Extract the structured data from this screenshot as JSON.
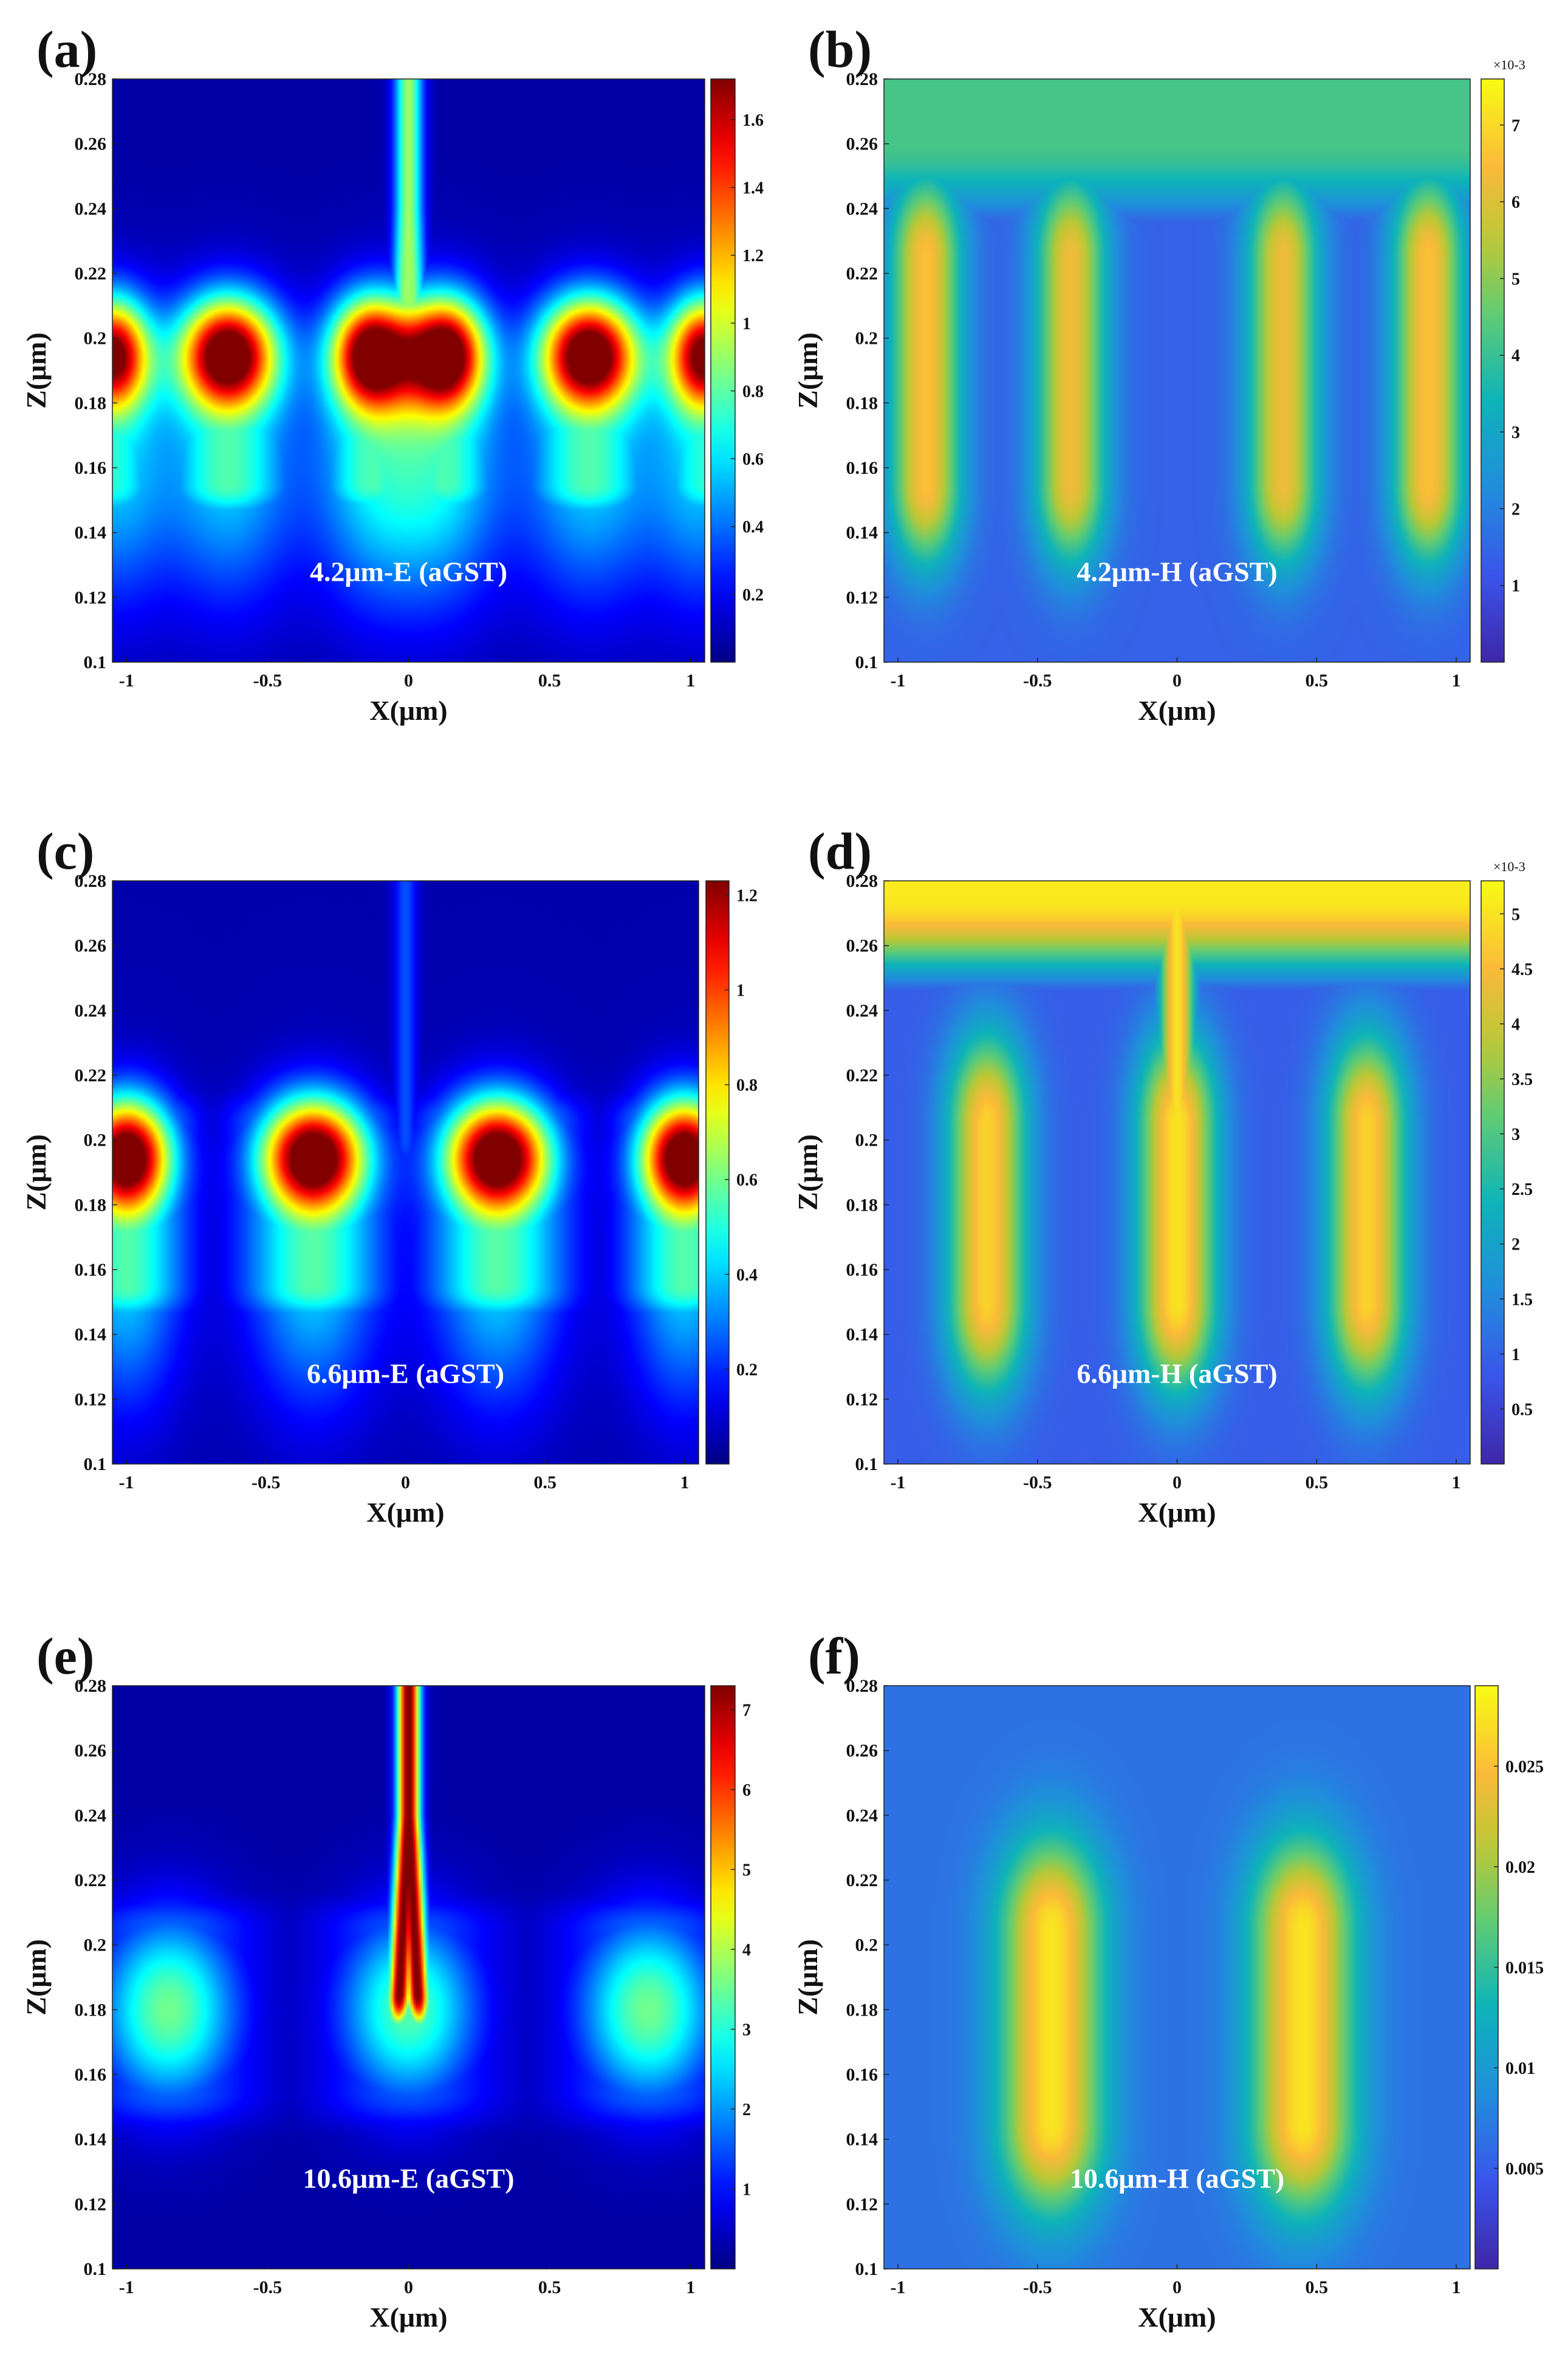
{
  "figure": {
    "description_free": true,
    "colormaps": {
      "jet_panels": [
        "a",
        "c",
        "e"
      ],
      "parula_panels": [
        "b",
        "d",
        "f"
      ]
    }
  },
  "chart_data": [
    {
      "id": "a",
      "panel_label": "(a)",
      "type": "heatmap",
      "colormap": "jet",
      "annotation": "4.2μm-E (aGST)",
      "xlabel": "X(μm)",
      "ylabel": "Z(μm)",
      "xlim": [
        -1.05,
        1.05
      ],
      "ylim": [
        0.1,
        0.28
      ],
      "x_ticks": [
        {
          "v": -1,
          "t": "-1"
        },
        {
          "v": -0.5,
          "t": "-0.5"
        },
        {
          "v": 0,
          "t": "0"
        },
        {
          "v": 0.5,
          "t": "0.5"
        },
        {
          "v": 1,
          "t": "1"
        }
      ],
      "y_ticks": [
        {
          "v": 0.1,
          "t": "0.1"
        },
        {
          "v": 0.12,
          "t": "0.12"
        },
        {
          "v": 0.14,
          "t": "0.14"
        },
        {
          "v": 0.16,
          "t": "0.16"
        },
        {
          "v": 0.18,
          "t": "0.18"
        },
        {
          "v": 0.2,
          "t": "0.2"
        },
        {
          "v": 0.22,
          "t": "0.22"
        },
        {
          "v": 0.24,
          "t": "0.24"
        },
        {
          "v": 0.26,
          "t": "0.26"
        },
        {
          "v": 0.28,
          "t": "0.28"
        }
      ],
      "colorbar": {
        "min": 0,
        "max": 1.72,
        "exponent": "",
        "ticks": [
          {
            "v": 0.2,
            "t": "0.2"
          },
          {
            "v": 0.4,
            "t": "0.4"
          },
          {
            "v": 0.6,
            "t": "0.6"
          },
          {
            "v": 0.8,
            "t": "0.8"
          },
          {
            "v": 1.0,
            "t": "1"
          },
          {
            "v": 1.2,
            "t": "1.2"
          },
          {
            "v": 1.4,
            "t": "1.4"
          },
          {
            "v": 1.6,
            "t": "1.6"
          }
        ]
      },
      "features": {
        "background": 0.06,
        "bands": [
          {
            "x": -1.05,
            "sx": 0.09,
            "amp": 1.55
          },
          {
            "x": -0.64,
            "sx": 0.12,
            "amp": 1.72
          },
          {
            "x": -0.13,
            "sx": 0.1,
            "amp": 1.7
          },
          {
            "x": 0.13,
            "sx": 0.1,
            "amp": 1.7
          },
          {
            "x": 0.64,
            "sx": 0.12,
            "amp": 1.72
          },
          {
            "x": 1.05,
            "sx": 0.09,
            "amp": 1.55
          }
        ],
        "band_z": 0.195,
        "band_sz": 0.012,
        "band_low_z": 0.16,
        "band_low_amp": 0.5,
        "band_low_sx_scale": 1.5,
        "band_low_sz": 0.03,
        "plume": {
          "amp": 0.85,
          "width": 0.035,
          "z_from": 0.195,
          "z_to": 0.28,
          "split": 0.02
        }
      }
    },
    {
      "id": "b",
      "panel_label": "(b)",
      "type": "heatmap",
      "colormap": "parula",
      "annotation": "4.2μm-H (aGST)",
      "xlabel": "X(μm)",
      "ylabel": "Z(μm)",
      "xlim": [
        -1.05,
        1.05
      ],
      "ylim": [
        0.1,
        0.28
      ],
      "x_ticks": [
        {
          "v": -1,
          "t": "-1"
        },
        {
          "v": -0.5,
          "t": "-0.5"
        },
        {
          "v": 0,
          "t": "0"
        },
        {
          "v": 0.5,
          "t": "0.5"
        },
        {
          "v": 1,
          "t": "1"
        }
      ],
      "y_ticks": [
        {
          "v": 0.1,
          "t": "0.1"
        },
        {
          "v": 0.12,
          "t": "0.12"
        },
        {
          "v": 0.14,
          "t": "0.14"
        },
        {
          "v": 0.16,
          "t": "0.16"
        },
        {
          "v": 0.18,
          "t": "0.18"
        },
        {
          "v": 0.2,
          "t": "0.2"
        },
        {
          "v": 0.22,
          "t": "0.22"
        },
        {
          "v": 0.24,
          "t": "0.24"
        },
        {
          "v": 0.26,
          "t": "0.26"
        },
        {
          "v": 0.28,
          "t": "0.28"
        }
      ],
      "colorbar": {
        "min": 0,
        "max": 7.6,
        "exponent": "×10-3",
        "ticks": [
          {
            "v": 1,
            "t": "1"
          },
          {
            "v": 2,
            "t": "2"
          },
          {
            "v": 3,
            "t": "3"
          },
          {
            "v": 4,
            "t": "4"
          },
          {
            "v": 5,
            "t": "5"
          },
          {
            "v": 6,
            "t": "6"
          },
          {
            "v": 7,
            "t": "7"
          }
        ]
      },
      "features": {
        "background": 1.4,
        "top_band": {
          "amp": 4.2,
          "z_from": 0.24
        },
        "lobes": [
          {
            "x": -0.9,
            "sx": 0.09,
            "amp": 6.6
          },
          {
            "x": -0.38,
            "sx": 0.09,
            "amp": 6.3
          },
          {
            "x": 0.38,
            "sx": 0.09,
            "amp": 6.3
          },
          {
            "x": 0.9,
            "sx": 0.09,
            "amp": 6.6
          }
        ],
        "lobe_z": [
          0.155,
          0.225
        ],
        "lobe_sz": 0.018
      }
    },
    {
      "id": "c",
      "panel_label": "(c)",
      "type": "heatmap",
      "colormap": "jet",
      "annotation": "6.6μm-E (aGST)",
      "xlabel": "X(μm)",
      "ylabel": "Z(μm)",
      "xlim": [
        -1.05,
        1.05
      ],
      "ylim": [
        0.1,
        0.28
      ],
      "x_ticks": [
        {
          "v": -1,
          "t": "-1"
        },
        {
          "v": -0.5,
          "t": "-0.5"
        },
        {
          "v": 0,
          "t": "0"
        },
        {
          "v": 0.5,
          "t": "0.5"
        },
        {
          "v": 1,
          "t": "1"
        }
      ],
      "y_ticks": [
        {
          "v": 0.1,
          "t": "0.1"
        },
        {
          "v": 0.12,
          "t": "0.12"
        },
        {
          "v": 0.14,
          "t": "0.14"
        },
        {
          "v": 0.16,
          "t": "0.16"
        },
        {
          "v": 0.18,
          "t": "0.18"
        },
        {
          "v": 0.2,
          "t": "0.2"
        },
        {
          "v": 0.22,
          "t": "0.22"
        },
        {
          "v": 0.24,
          "t": "0.24"
        },
        {
          "v": 0.26,
          "t": "0.26"
        },
        {
          "v": 0.28,
          "t": "0.28"
        }
      ],
      "colorbar": {
        "min": 0,
        "max": 1.23,
        "exponent": "",
        "ticks": [
          {
            "v": 0.2,
            "t": "0.2"
          },
          {
            "v": 0.4,
            "t": "0.4"
          },
          {
            "v": 0.6,
            "t": "0.6"
          },
          {
            "v": 0.8,
            "t": "0.8"
          },
          {
            "v": 1.0,
            "t": "1"
          },
          {
            "v": 1.2,
            "t": "1.2"
          }
        ]
      },
      "features": {
        "background": 0.05,
        "bands": [
          {
            "x": -1.0,
            "sx": 0.11,
            "amp": 1.22
          },
          {
            "x": -0.33,
            "sx": 0.13,
            "amp": 1.23
          },
          {
            "x": 0.33,
            "sx": 0.13,
            "amp": 1.23
          },
          {
            "x": 1.0,
            "sx": 0.11,
            "amp": 1.22
          }
        ],
        "band_z": 0.195,
        "band_sz": 0.012,
        "band_low_z": 0.16,
        "band_low_amp": 0.5,
        "band_low_sx_scale": 1.3,
        "band_low_sz": 0.03,
        "plume": {
          "amp": 0.2,
          "width": 0.03,
          "z_from": 0.195,
          "z_to": 0.28,
          "split": 0.0
        }
      }
    },
    {
      "id": "d",
      "panel_label": "(d)",
      "type": "heatmap",
      "colormap": "parula",
      "annotation": "6.6μm-H (aGST)",
      "xlabel": "X(μm)",
      "ylabel": "Z(μm)",
      "xlim": [
        -1.05,
        1.05
      ],
      "ylim": [
        0.1,
        0.28
      ],
      "x_ticks": [
        {
          "v": -1,
          "t": "-1"
        },
        {
          "v": -0.5,
          "t": "-0.5"
        },
        {
          "v": 0,
          "t": "0"
        },
        {
          "v": 0.5,
          "t": "0.5"
        },
        {
          "v": 1,
          "t": "1"
        }
      ],
      "y_ticks": [
        {
          "v": 0.1,
          "t": "0.1"
        },
        {
          "v": 0.12,
          "t": "0.12"
        },
        {
          "v": 0.14,
          "t": "0.14"
        },
        {
          "v": 0.16,
          "t": "0.16"
        },
        {
          "v": 0.18,
          "t": "0.18"
        },
        {
          "v": 0.2,
          "t": "0.2"
        },
        {
          "v": 0.22,
          "t": "0.22"
        },
        {
          "v": 0.24,
          "t": "0.24"
        },
        {
          "v": 0.26,
          "t": "0.26"
        },
        {
          "v": 0.28,
          "t": "0.28"
        }
      ],
      "colorbar": {
        "min": 0,
        "max": 5.3,
        "exponent": "×10-3",
        "ticks": [
          {
            "v": 0.5,
            "t": "0.5"
          },
          {
            "v": 1,
            "t": "1"
          },
          {
            "v": 1.5,
            "t": "1.5"
          },
          {
            "v": 2,
            "t": "2"
          },
          {
            "v": 2.5,
            "t": "2.5"
          },
          {
            "v": 3,
            "t": "3"
          },
          {
            "v": 3.5,
            "t": "3.5"
          },
          {
            "v": 4,
            "t": "4"
          },
          {
            "v": 4.5,
            "t": "4.5"
          },
          {
            "v": 5,
            "t": "5"
          }
        ],
        "tick_positions_note": "ticks are evenly spaced in value"
      },
      "features": {
        "background": 0.9,
        "top_band": {
          "amp": 5.1,
          "z_from": 0.255
        },
        "lobes": [
          {
            "x": -0.68,
            "sx": 0.1,
            "amp": 4.8
          },
          {
            "x": 0.0,
            "sx": 0.1,
            "amp": 5.0
          },
          {
            "x": 0.68,
            "sx": 0.1,
            "amp": 4.8
          }
        ],
        "lobe_z": [
          0.15,
          0.205
        ],
        "lobe_sz": 0.02,
        "center_stalk": {
          "amp": 5.0,
          "width": 0.05
        }
      }
    },
    {
      "id": "e",
      "panel_label": "(e)",
      "type": "heatmap",
      "colormap": "jet",
      "annotation": "10.6μm-E (aGST)",
      "xlabel": "X(μm)",
      "ylabel": "Z(μm)",
      "xlim": [
        -1.05,
        1.05
      ],
      "ylim": [
        0.1,
        0.28
      ],
      "x_ticks": [
        {
          "v": -1,
          "t": "-1"
        },
        {
          "v": -0.5,
          "t": "-0.5"
        },
        {
          "v": 0,
          "t": "0"
        },
        {
          "v": 0.5,
          "t": "0.5"
        },
        {
          "v": 1,
          "t": "1"
        }
      ],
      "y_ticks": [
        {
          "v": 0.1,
          "t": "0.1"
        },
        {
          "v": 0.12,
          "t": "0.12"
        },
        {
          "v": 0.14,
          "t": "0.14"
        },
        {
          "v": 0.16,
          "t": "0.16"
        },
        {
          "v": 0.18,
          "t": "0.18"
        },
        {
          "v": 0.2,
          "t": "0.2"
        },
        {
          "v": 0.22,
          "t": "0.22"
        },
        {
          "v": 0.24,
          "t": "0.24"
        },
        {
          "v": 0.26,
          "t": "0.26"
        },
        {
          "v": 0.28,
          "t": "0.28"
        }
      ],
      "colorbar": {
        "min": 0,
        "max": 7.3,
        "exponent": "",
        "ticks": [
          {
            "v": 1,
            "t": "1"
          },
          {
            "v": 2,
            "t": "2"
          },
          {
            "v": 3,
            "t": "3"
          },
          {
            "v": 4,
            "t": "4"
          },
          {
            "v": 5,
            "t": "5"
          },
          {
            "v": 6,
            "t": "6"
          },
          {
            "v": 7,
            "t": "7"
          }
        ]
      },
      "features": {
        "background": 0.25,
        "bands": [
          {
            "x": -0.85,
            "sx": 0.17,
            "amp": 3.3
          },
          {
            "x": 0.0,
            "sx": 0.17,
            "amp": 3.1
          },
          {
            "x": 0.85,
            "sx": 0.17,
            "amp": 3.3
          }
        ],
        "band_z": 0.18,
        "band_sz": 0.02,
        "band_low_z": 0.17,
        "band_low_amp": 0.0,
        "band_low_sx_scale": 1.0,
        "band_low_sz": 0.02,
        "plume": {
          "amp": 7.3,
          "width": 0.028,
          "z_from": 0.18,
          "z_to": 0.28,
          "split": 0.035
        }
      }
    },
    {
      "id": "f",
      "panel_label": "(f)",
      "type": "heatmap",
      "colormap": "parula",
      "annotation": "10.6μm-H (aGST)",
      "xlabel": "X(μm)",
      "ylabel": "Z(μm)",
      "xlim": [
        -1.05,
        1.05
      ],
      "ylim": [
        0.1,
        0.28
      ],
      "x_ticks": [
        {
          "v": -1,
          "t": "-1"
        },
        {
          "v": -0.5,
          "t": "-0.5"
        },
        {
          "v": 0,
          "t": "0"
        },
        {
          "v": 0.5,
          "t": "0.5"
        },
        {
          "v": 1,
          "t": "1"
        }
      ],
      "y_ticks": [
        {
          "v": 0.1,
          "t": "0.1"
        },
        {
          "v": 0.12,
          "t": "0.12"
        },
        {
          "v": 0.14,
          "t": "0.14"
        },
        {
          "v": 0.16,
          "t": "0.16"
        },
        {
          "v": 0.18,
          "t": "0.18"
        },
        {
          "v": 0.2,
          "t": "0.2"
        },
        {
          "v": 0.22,
          "t": "0.22"
        },
        {
          "v": 0.24,
          "t": "0.24"
        },
        {
          "v": 0.26,
          "t": "0.26"
        },
        {
          "v": 0.28,
          "t": "0.28"
        }
      ],
      "colorbar": {
        "min": 0,
        "max": 0.029,
        "exponent": "",
        "ticks": [
          {
            "v": 0.005,
            "t": "0.005"
          },
          {
            "v": 0.01,
            "t": "0.01"
          },
          {
            "v": 0.015,
            "t": "0.015"
          },
          {
            "v": 0.02,
            "t": "0.02"
          },
          {
            "v": 0.025,
            "t": "0.025"
          }
        ]
      },
      "features": {
        "background": 0.0065,
        "lobes": [
          {
            "x": -0.45,
            "sx": 0.13,
            "amp": 0.0275
          },
          {
            "x": 0.45,
            "sx": 0.13,
            "amp": 0.0275
          }
        ],
        "lobe_z": [
          0.145,
          0.205
        ],
        "lobe_sz": 0.02
      }
    }
  ]
}
